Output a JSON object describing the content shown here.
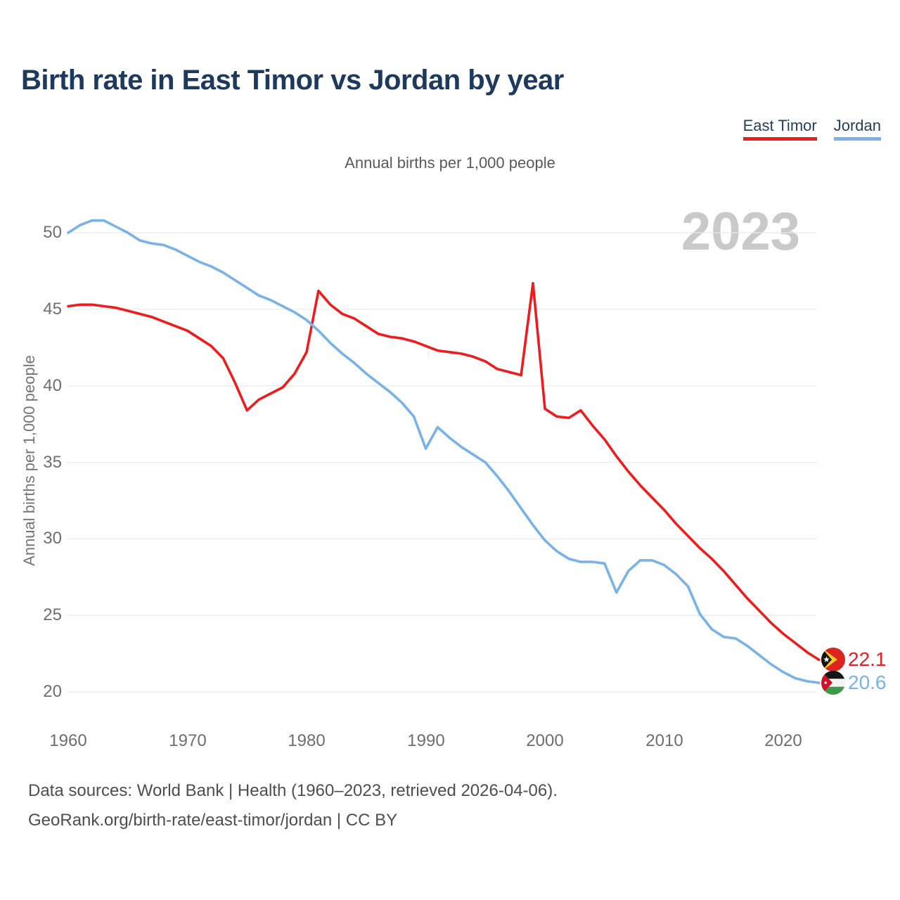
{
  "header": {
    "title": "Birth rate in East Timor vs Jordan by year"
  },
  "subtitle": "Annual births per 1,000 people",
  "watermark": "2023",
  "legend": {
    "items": [
      {
        "label": "East Timor",
        "color": "#ee1c1c"
      },
      {
        "label": "Jordan",
        "color": "#79b2e6"
      }
    ]
  },
  "axes": {
    "y_label": "Annual births per 1,000 people",
    "y_ticks": [
      50,
      45,
      40,
      35,
      30,
      25,
      20
    ],
    "x_ticks": [
      1960,
      1970,
      1980,
      1990,
      2000,
      2010,
      2020
    ]
  },
  "chart_data": {
    "type": "line",
    "title": "Birth rate in East Timor vs Jordan by year",
    "subtitle": "Annual births per 1,000 people",
    "xlabel": "",
    "ylabel": "Annual births per 1,000 people",
    "xlim": [
      1960,
      2023
    ],
    "ylim": [
      20,
      51
    ],
    "grid": "horizontal",
    "legend_position": "top-right",
    "x": [
      1960,
      1961,
      1962,
      1963,
      1964,
      1965,
      1966,
      1967,
      1968,
      1969,
      1970,
      1971,
      1972,
      1973,
      1974,
      1975,
      1976,
      1977,
      1978,
      1979,
      1980,
      1981,
      1982,
      1983,
      1984,
      1985,
      1986,
      1987,
      1988,
      1989,
      1990,
      1991,
      1992,
      1993,
      1994,
      1995,
      1996,
      1997,
      1998,
      1999,
      2000,
      2001,
      2002,
      2003,
      2004,
      2005,
      2006,
      2007,
      2008,
      2009,
      2010,
      2011,
      2012,
      2013,
      2014,
      2015,
      2016,
      2017,
      2018,
      2019,
      2020,
      2021,
      2022,
      2023
    ],
    "series": [
      {
        "name": "East Timor",
        "color": "#ee1c1c",
        "values": [
          45.2,
          45.3,
          45.3,
          45.2,
          45.1,
          44.9,
          44.7,
          44.5,
          44.2,
          43.9,
          43.6,
          43.1,
          42.6,
          41.8,
          40.2,
          38.4,
          39.1,
          39.5,
          39.9,
          40.8,
          42.2,
          46.2,
          45.3,
          44.7,
          44.4,
          43.9,
          43.4,
          43.2,
          43.1,
          42.9,
          42.6,
          42.3,
          42.2,
          42.1,
          41.9,
          41.6,
          41.1,
          40.9,
          40.7,
          46.7,
          38.5,
          38.0,
          37.9,
          38.4,
          37.4,
          36.5,
          35.4,
          34.4,
          33.5,
          32.7,
          31.9,
          31.0,
          30.2,
          29.4,
          28.7,
          27.9,
          27.0,
          26.1,
          25.3,
          24.5,
          23.8,
          23.2,
          22.6,
          22.1
        ]
      },
      {
        "name": "Jordan",
        "color": "#79b2e6",
        "values": [
          50.0,
          50.5,
          50.8,
          50.8,
          50.4,
          50.0,
          49.5,
          49.3,
          49.2,
          48.9,
          48.5,
          48.1,
          47.8,
          47.4,
          46.9,
          46.4,
          45.9,
          45.6,
          45.2,
          44.8,
          44.3,
          43.6,
          42.8,
          42.1,
          41.5,
          40.8,
          40.2,
          39.6,
          38.9,
          38.0,
          35.9,
          37.3,
          36.6,
          36.0,
          35.5,
          35.0,
          34.1,
          33.1,
          32.0,
          30.9,
          29.9,
          29.2,
          28.7,
          28.5,
          28.5,
          28.4,
          26.5,
          27.9,
          28.6,
          28.6,
          28.3,
          27.7,
          26.9,
          25.1,
          24.1,
          23.6,
          23.5,
          23.0,
          22.4,
          21.8,
          21.3,
          20.9,
          20.7,
          20.6
        ]
      }
    ],
    "end_labels": [
      {
        "series": "East Timor",
        "value": "22.1",
        "color": "#ee1c1c",
        "flag": "east-timor-flag"
      },
      {
        "series": "Jordan",
        "value": "20.6",
        "color": "#79b2e6",
        "flag": "jordan-flag"
      }
    ]
  },
  "footer": {
    "line1": "Data sources: World Bank | Health (1960–2023, retrieved 2026-04-06).",
    "line2": "GeoRank.org/birth-rate/east-timor/jordan | CC BY"
  }
}
